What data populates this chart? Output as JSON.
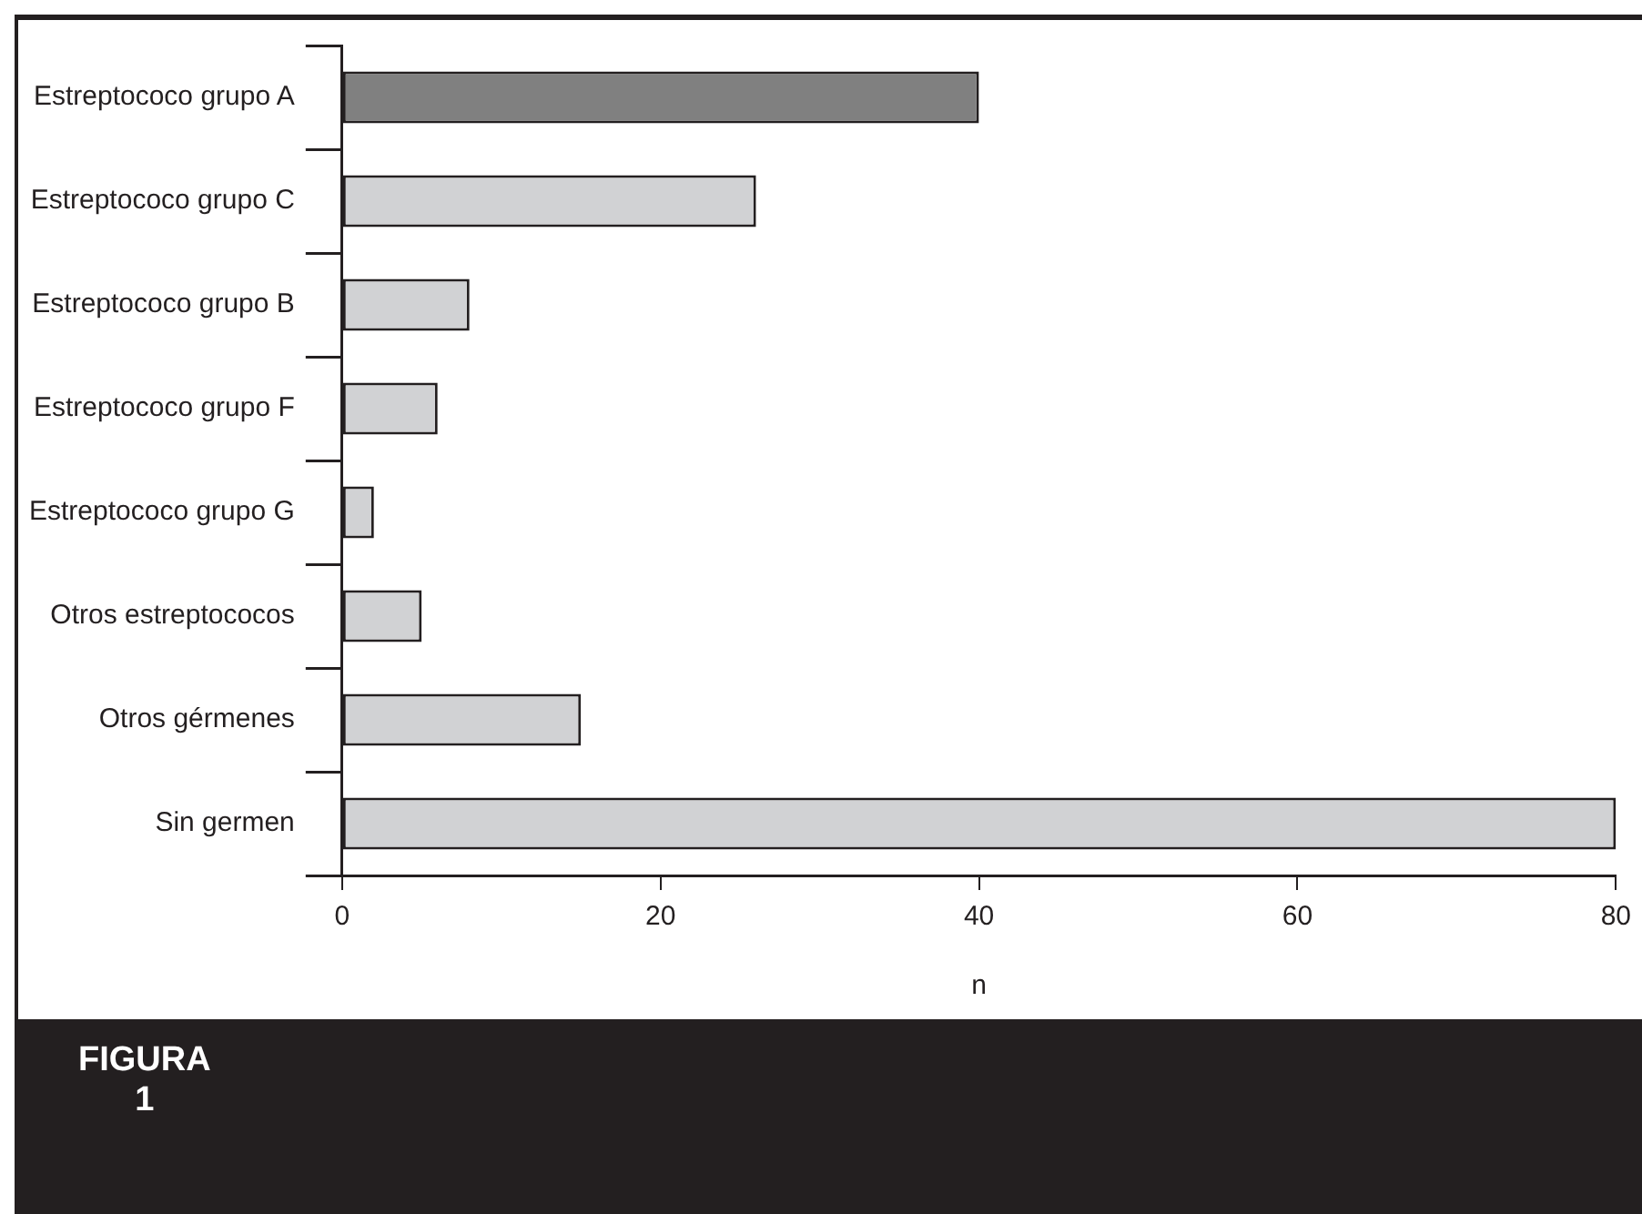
{
  "chart_data": {
    "type": "bar",
    "orientation": "horizontal",
    "xlabel": "n",
    "categories": [
      "Estreptococo grupo A",
      "Estreptococo grupo C",
      "Estreptococo grupo B",
      "Estreptococo grupo F",
      "Estreptococo grupo G",
      "Otros estreptococos",
      "Otros gérmenes",
      "Sin germen"
    ],
    "values": [
      40,
      26,
      8,
      6,
      2,
      5,
      15,
      80
    ],
    "colors": [
      "#808080",
      "#d1d2d4",
      "#d1d2d4",
      "#d1d2d4",
      "#d1d2d4",
      "#d1d2d4",
      "#d1d2d4",
      "#d1d2d4"
    ],
    "xlim": [
      0,
      80
    ],
    "xticks": [
      0,
      20,
      40,
      60,
      80
    ],
    "grid": false,
    "legend": false,
    "annotations": [
      "FIGURA",
      "1"
    ]
  }
}
